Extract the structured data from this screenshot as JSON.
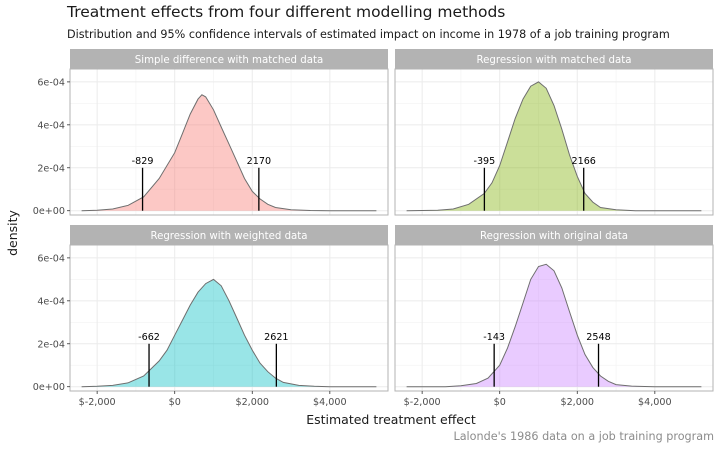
{
  "chart_data": {
    "type": "area",
    "title": "Treatment effects from four different modelling methods",
    "subtitle": "Distribution and 95% confidence intervals of estimated impact on income in 1978 of a job training program",
    "xlabel": "Estimated treatment effect",
    "ylabel": "density",
    "caption": "Lalonde's 1986 data on a job training program",
    "xlim": [
      -2700,
      5500
    ],
    "ylim": [
      -2e-05,
      0.00066
    ],
    "x_ticks": [
      -2000,
      0,
      2000,
      4000
    ],
    "x_tick_labels": [
      "$-2,000",
      "$0",
      "$2,000",
      "$4,000"
    ],
    "y_ticks": [
      0,
      0.0002,
      0.0004,
      0.0006
    ],
    "y_tick_labels": [
      "0e+00",
      "2e-04",
      "4e-04",
      "6e-04"
    ],
    "grid": true,
    "panels": [
      {
        "name": "Simple difference with matched data",
        "color": "#F8766D",
        "ci": [
          -829,
          2170
        ],
        "ci_labels": [
          "-829",
          "2170"
        ],
        "density": [
          [
            -2400,
            0
          ],
          [
            -2000,
            2e-06
          ],
          [
            -1600,
            8e-06
          ],
          [
            -1200,
            2.5e-05
          ],
          [
            -800,
            6.5e-05
          ],
          [
            -400,
            0.00015
          ],
          [
            0,
            0.00027
          ],
          [
            200,
            0.00036
          ],
          [
            400,
            0.00045
          ],
          [
            600,
            0.00052
          ],
          [
            700,
            0.00054
          ],
          [
            800,
            0.00053
          ],
          [
            1000,
            0.00047
          ],
          [
            1200,
            0.00039
          ],
          [
            1400,
            0.00031
          ],
          [
            1600,
            0.00023
          ],
          [
            1800,
            0.00015
          ],
          [
            2000,
            9e-05
          ],
          [
            2200,
            5.5e-05
          ],
          [
            2400,
            3e-05
          ],
          [
            2600,
            1.5e-05
          ],
          [
            3000,
            4e-06
          ],
          [
            3500,
            1e-06
          ],
          [
            4000,
            0
          ],
          [
            5200,
            0
          ]
        ]
      },
      {
        "name": "Regression with matched data",
        "color": "#7CAE00",
        "ci": [
          -395,
          2166
        ],
        "ci_labels": [
          "-395",
          "2166"
        ],
        "density": [
          [
            -2400,
            0
          ],
          [
            -1600,
            2e-06
          ],
          [
            -1200,
            8e-06
          ],
          [
            -800,
            3e-05
          ],
          [
            -400,
            8e-05
          ],
          [
            -200,
            0.00013
          ],
          [
            0,
            0.00021
          ],
          [
            200,
            0.00032
          ],
          [
            400,
            0.00043
          ],
          [
            600,
            0.00052
          ],
          [
            800,
            0.00058
          ],
          [
            1000,
            0.0006
          ],
          [
            1200,
            0.00057
          ],
          [
            1400,
            0.00049
          ],
          [
            1600,
            0.00038
          ],
          [
            1800,
            0.00026
          ],
          [
            2000,
            0.00016
          ],
          [
            2200,
            8e-05
          ],
          [
            2400,
            4e-05
          ],
          [
            2600,
            1.5e-05
          ],
          [
            3000,
            4e-06
          ],
          [
            3500,
            0
          ],
          [
            5200,
            0
          ]
        ]
      },
      {
        "name": "Regression with weighted data",
        "color": "#00BFC4",
        "ci": [
          -662,
          2621
        ],
        "ci_labels": [
          "-662",
          "2621"
        ],
        "density": [
          [
            -2400,
            0
          ],
          [
            -2000,
            2e-06
          ],
          [
            -1600,
            6e-06
          ],
          [
            -1200,
            1.8e-05
          ],
          [
            -800,
            5e-05
          ],
          [
            -400,
            0.00012
          ],
          [
            -200,
            0.00017
          ],
          [
            0,
            0.00024
          ],
          [
            200,
            0.00031
          ],
          [
            400,
            0.00038
          ],
          [
            600,
            0.00044
          ],
          [
            800,
            0.00048
          ],
          [
            1000,
            0.0005
          ],
          [
            1200,
            0.00047
          ],
          [
            1400,
            0.0004
          ],
          [
            1600,
            0.00032
          ],
          [
            1800,
            0.00024
          ],
          [
            2000,
            0.00017
          ],
          [
            2200,
            0.00011
          ],
          [
            2400,
            7e-05
          ],
          [
            2600,
            4e-05
          ],
          [
            2800,
            2e-05
          ],
          [
            3200,
            6e-06
          ],
          [
            3600,
            2e-06
          ],
          [
            4000,
            0
          ],
          [
            5200,
            0
          ]
        ]
      },
      {
        "name": "Regression with original data",
        "color": "#C77CFF",
        "ci": [
          -143,
          2548
        ],
        "ci_labels": [
          "-143",
          "2548"
        ],
        "density": [
          [
            -2400,
            0
          ],
          [
            -1400,
            0
          ],
          [
            -1000,
            4e-06
          ],
          [
            -600,
            1.5e-05
          ],
          [
            -300,
            4e-05
          ],
          [
            0,
            0.0001
          ],
          [
            200,
            0.00018
          ],
          [
            400,
            0.00028
          ],
          [
            600,
            0.00039
          ],
          [
            800,
            0.0005
          ],
          [
            1000,
            0.00056
          ],
          [
            1200,
            0.00057
          ],
          [
            1400,
            0.00054
          ],
          [
            1600,
            0.00046
          ],
          [
            1800,
            0.00035
          ],
          [
            2000,
            0.00024
          ],
          [
            2200,
            0.00015
          ],
          [
            2400,
            9e-05
          ],
          [
            2600,
            5e-05
          ],
          [
            2800,
            2.5e-05
          ],
          [
            3000,
            1e-05
          ],
          [
            3400,
            3e-06
          ],
          [
            4000,
            0
          ],
          [
            5200,
            0
          ]
        ]
      }
    ]
  }
}
